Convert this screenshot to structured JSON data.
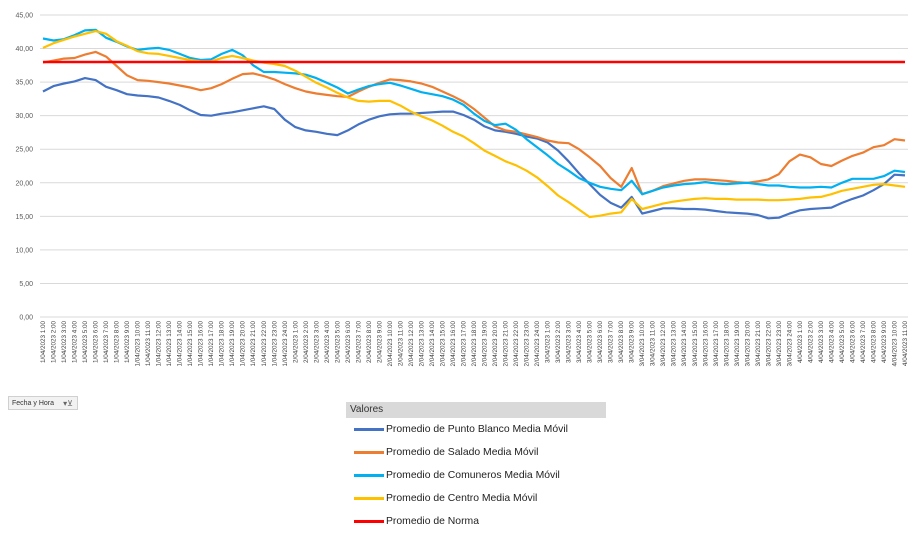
{
  "filter_button": {
    "label": "Fecha y Hora",
    "icon": "filter-icon"
  },
  "legend": {
    "header": "Valores",
    "items": [
      {
        "label": "Promedio de Punto Blanco Media Móvil",
        "color": "#4472c4"
      },
      {
        "label": "Promedio de Salado Media Móvil",
        "color": "#ed7d31"
      },
      {
        "label": "Promedio de Comuneros Media Móvil",
        "color": "#00b0f0"
      },
      {
        "label": "Promedio de Centro Media Móvil",
        "color": "#ffc000"
      },
      {
        "label": "Promedio de Norma",
        "color": "#ff0000"
      }
    ]
  },
  "chart_data": {
    "type": "line",
    "title": "",
    "xlabel": "",
    "ylabel": "",
    "ylim": [
      0,
      45
    ],
    "yticks": [
      "0,00",
      "5,00",
      "10,00",
      "15,00",
      "20,00",
      "25,00",
      "30,00",
      "35,00",
      "40,00",
      "45,00"
    ],
    "grid": true,
    "x": [
      "1/04/2023 1:00",
      "1/04/2023 2:00",
      "1/04/2023 3:00",
      "1/04/2023 4:00",
      "1/04/2023 5:00",
      "1/04/2023 6:00",
      "1/04/2023 7:00",
      "1/04/2023 8:00",
      "1/04/2023 9:00",
      "1/04/2023 10:00",
      "1/04/2023 11:00",
      "1/04/2023 12:00",
      "1/04/2023 13:00",
      "1/04/2023 14:00",
      "1/04/2023 15:00",
      "1/04/2023 16:00",
      "1/04/2023 17:00",
      "1/04/2023 18:00",
      "1/04/2023 19:00",
      "1/04/2023 20:00",
      "1/04/2023 21:00",
      "1/04/2023 22:00",
      "1/04/2023 23:00",
      "1/04/2023 24:00",
      "2/04/2023 1:00",
      "2/04/2023 2:00",
      "2/04/2023 3:00",
      "2/04/2023 4:00",
      "2/04/2023 5:00",
      "2/04/2023 6:00",
      "2/04/2023 7:00",
      "2/04/2023 8:00",
      "2/04/2023 9:00",
      "2/04/2023 10:00",
      "2/04/2023 11:00",
      "2/04/2023 12:00",
      "2/04/2023 13:00",
      "2/04/2023 14:00",
      "2/04/2023 15:00",
      "2/04/2023 16:00",
      "2/04/2023 17:00",
      "2/04/2023 18:00",
      "2/04/2023 19:00",
      "2/04/2023 20:00",
      "2/04/2023 21:00",
      "2/04/2023 22:00",
      "2/04/2023 23:00",
      "2/04/2023 24:00",
      "3/04/2023 1:00",
      "3/04/2023 2:00",
      "3/04/2023 3:00",
      "3/04/2023 4:00",
      "3/04/2023 5:00",
      "3/04/2023 6:00",
      "3/04/2023 7:00",
      "3/04/2023 8:00",
      "3/04/2023 9:00",
      "3/04/2023 10:00",
      "3/04/2023 11:00",
      "3/04/2023 12:00",
      "3/04/2023 13:00",
      "3/04/2023 14:00",
      "3/04/2023 15:00",
      "3/04/2023 16:00",
      "3/04/2023 17:00",
      "3/04/2023 18:00",
      "3/04/2023 19:00",
      "3/04/2023 20:00",
      "3/04/2023 21:00",
      "3/04/2023 22:00",
      "3/04/2023 23:00",
      "3/04/2023 24:00",
      "4/04/2023 1:00",
      "4/04/2023 2:00",
      "4/04/2023 3:00",
      "4/04/2023 4:00",
      "4/04/2023 5:00",
      "4/04/2023 6:00",
      "4/04/2023 7:00",
      "4/04/2023 8:00",
      "4/04/2023 9:00",
      "4/04/2023 10:00",
      "4/04/2023 11:00"
    ],
    "series": [
      {
        "name": "Promedio de Punto Blanco Media Móvil",
        "color": "#4472c4",
        "values": [
          33.6,
          34.4,
          34.8,
          35.1,
          35.6,
          35.3,
          34.3,
          33.8,
          33.2,
          33.0,
          32.9,
          32.7,
          32.2,
          31.6,
          30.8,
          30.1,
          30.0,
          30.3,
          30.5,
          30.8,
          31.1,
          31.4,
          31.0,
          29.4,
          28.3,
          27.8,
          27.6,
          27.3,
          27.1,
          27.8,
          28.7,
          29.4,
          29.9,
          30.2,
          30.3,
          30.3,
          30.4,
          30.5,
          30.6,
          30.6,
          30.1,
          29.4,
          28.4,
          27.8,
          27.6,
          27.3,
          26.9,
          26.6,
          26.0,
          24.8,
          23.2,
          21.4,
          19.8,
          18.2,
          17.0,
          16.3,
          17.9,
          15.4,
          15.8,
          16.2,
          16.2,
          16.1,
          16.1,
          16.0,
          15.8,
          15.6,
          15.5,
          15.4,
          15.2,
          14.7,
          14.8,
          15.4,
          15.9,
          16.1,
          16.2,
          16.3,
          17.0,
          17.6,
          18.1,
          18.9,
          19.8,
          21.2,
          21.1
        ]
      },
      {
        "name": "Promedio de Salado Media Móvil",
        "color": "#ed7d31",
        "values": [
          37.9,
          38.2,
          38.5,
          38.6,
          39.1,
          39.5,
          38.8,
          37.4,
          36.0,
          35.3,
          35.2,
          35.0,
          34.8,
          34.5,
          34.2,
          33.8,
          34.1,
          34.7,
          35.5,
          36.2,
          36.3,
          35.9,
          35.4,
          34.7,
          34.1,
          33.6,
          33.3,
          33.1,
          32.9,
          32.8,
          33.6,
          34.3,
          34.9,
          35.4,
          35.3,
          35.1,
          34.8,
          34.3,
          33.6,
          32.9,
          32.1,
          31.0,
          29.7,
          28.4,
          27.8,
          27.6,
          27.2,
          26.8,
          26.3,
          26.0,
          25.9,
          25.0,
          23.8,
          22.5,
          20.7,
          19.4,
          22.2,
          18.3,
          18.8,
          19.5,
          19.9,
          20.3,
          20.5,
          20.5,
          20.4,
          20.3,
          20.1,
          20.0,
          20.2,
          20.5,
          21.3,
          23.2,
          24.2,
          23.8,
          22.8,
          22.5,
          23.3,
          24.0,
          24.5,
          25.3,
          25.6,
          26.5,
          26.3
        ]
      },
      {
        "name": "Promedio de Comuneros Media Móvil",
        "color": "#00b0f0",
        "values": [
          41.5,
          41.2,
          41.4,
          42.0,
          42.7,
          42.8,
          41.6,
          41.0,
          40.3,
          39.8,
          40.0,
          40.1,
          39.8,
          39.2,
          38.6,
          38.3,
          38.4,
          39.2,
          39.8,
          39.0,
          37.5,
          36.5,
          36.5,
          36.4,
          36.3,
          36.1,
          35.6,
          34.9,
          34.2,
          33.3,
          33.9,
          34.4,
          34.7,
          34.9,
          34.5,
          34.0,
          33.5,
          33.2,
          32.9,
          32.4,
          31.6,
          30.3,
          29.2,
          28.6,
          28.8,
          27.9,
          26.5,
          25.3,
          24.1,
          22.8,
          21.8,
          20.7,
          20.0,
          19.4,
          19.1,
          18.9,
          20.3,
          18.3,
          18.8,
          19.3,
          19.6,
          19.8,
          19.9,
          20.1,
          19.9,
          19.8,
          19.9,
          20.0,
          19.8,
          19.6,
          19.6,
          19.4,
          19.3,
          19.3,
          19.4,
          19.3,
          20.0,
          20.6,
          20.6,
          20.6,
          21.0,
          21.8,
          21.6
        ]
      },
      {
        "name": "Promedio de Centro Media Móvil",
        "color": "#ffc000",
        "values": [
          40.1,
          40.8,
          41.3,
          41.8,
          42.2,
          42.6,
          42.2,
          41.1,
          40.4,
          39.6,
          39.3,
          39.2,
          38.9,
          38.6,
          38.3,
          38.1,
          38.1,
          38.6,
          38.9,
          38.6,
          38.2,
          37.9,
          37.7,
          37.4,
          36.7,
          35.8,
          34.9,
          34.2,
          33.4,
          32.7,
          32.2,
          32.1,
          32.2,
          32.2,
          31.5,
          30.6,
          29.9,
          29.3,
          28.5,
          27.6,
          26.9,
          25.9,
          24.8,
          24.0,
          23.2,
          22.6,
          21.8,
          20.8,
          19.5,
          18.1,
          17.1,
          16.0,
          14.9,
          15.1,
          15.4,
          15.6,
          17.6,
          16.1,
          16.5,
          16.9,
          17.2,
          17.4,
          17.6,
          17.7,
          17.6,
          17.6,
          17.5,
          17.5,
          17.5,
          17.4,
          17.4,
          17.5,
          17.6,
          17.8,
          17.9,
          18.3,
          18.8,
          19.1,
          19.4,
          19.7,
          19.8,
          19.6,
          19.4
        ]
      },
      {
        "name": "Promedio de Norma",
        "color": "#ff0000",
        "values": [
          38,
          38,
          38,
          38,
          38,
          38,
          38,
          38,
          38,
          38,
          38,
          38,
          38,
          38,
          38,
          38,
          38,
          38,
          38,
          38,
          38,
          38,
          38,
          38,
          38,
          38,
          38,
          38,
          38,
          38,
          38,
          38,
          38,
          38,
          38,
          38,
          38,
          38,
          38,
          38,
          38,
          38,
          38,
          38,
          38,
          38,
          38,
          38,
          38,
          38,
          38,
          38,
          38,
          38,
          38,
          38,
          38,
          38,
          38,
          38,
          38,
          38,
          38,
          38,
          38,
          38,
          38,
          38,
          38,
          38,
          38,
          38,
          38,
          38,
          38,
          38,
          38,
          38,
          38,
          38,
          38,
          38,
          38
        ]
      }
    ]
  }
}
